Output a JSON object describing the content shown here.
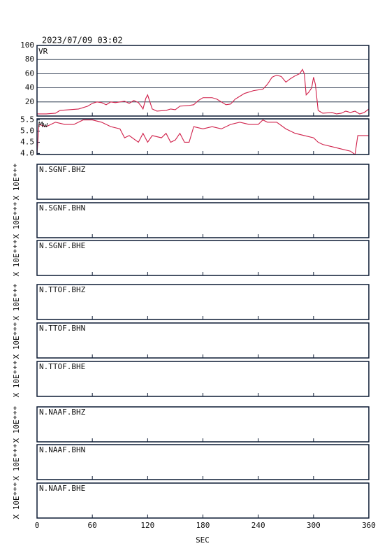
{
  "title": "2023/07/09 03:02",
  "x_axis": {
    "label": "SEC",
    "xlim": [
      0,
      360
    ],
    "xticks": [
      0,
      60,
      120,
      180,
      240,
      300,
      360
    ]
  },
  "chart_data": [
    {
      "type": "line",
      "y_label": "VR",
      "color": "#d0204a",
      "grid": true,
      "ylim": [
        0,
        100
      ],
      "yticks": [
        20,
        40,
        60,
        80,
        100
      ],
      "x": [
        0,
        10,
        20,
        25,
        35,
        45,
        55,
        60,
        65,
        70,
        75,
        80,
        85,
        95,
        100,
        105,
        110,
        113,
        115,
        118,
        120,
        122,
        125,
        130,
        140,
        145,
        150,
        155,
        165,
        170,
        175,
        180,
        190,
        195,
        200,
        205,
        210,
        215,
        220,
        225,
        235,
        240,
        245,
        250,
        255,
        260,
        265,
        270,
        275,
        280,
        285,
        288,
        290,
        292,
        295,
        298,
        300,
        302,
        305,
        310,
        320,
        325,
        330,
        335,
        340,
        345,
        350,
        355,
        360
      ],
      "values": [
        3,
        3,
        4,
        8,
        9,
        10,
        14,
        18,
        20,
        19,
        16,
        20,
        19,
        21,
        18,
        22,
        19,
        14,
        10,
        25,
        30,
        22,
        10,
        7,
        8,
        10,
        9,
        14,
        15,
        16,
        22,
        26,
        26,
        24,
        20,
        16,
        17,
        24,
        28,
        32,
        36,
        37,
        38,
        45,
        55,
        58,
        56,
        48,
        53,
        57,
        60,
        66,
        60,
        30,
        34,
        40,
        55,
        45,
        8,
        4,
        5,
        3,
        4,
        7,
        5,
        7,
        3,
        5,
        10
      ]
    },
    {
      "type": "line",
      "y_label": "Mw",
      "color": "#d0204a",
      "grid": false,
      "ylim": [
        3.95,
        5.55
      ],
      "yticks": [
        {
          "value": 4,
          "label": "4.0"
        },
        4.5,
        {
          "value": 5,
          "label": "5.0"
        },
        5.5
      ],
      "x": [
        0,
        2,
        10,
        20,
        30,
        40,
        50,
        60,
        70,
        80,
        90,
        95,
        100,
        110,
        115,
        120,
        125,
        135,
        140,
        145,
        150,
        155,
        160,
        165,
        170,
        180,
        190,
        200,
        210,
        220,
        230,
        240,
        245,
        250,
        260,
        270,
        280,
        290,
        300,
        305,
        310,
        320,
        330,
        340,
        345,
        348,
        355,
        360
      ],
      "values": [
        3.95,
        5.3,
        5.2,
        5.4,
        5.3,
        5.3,
        5.5,
        5.5,
        5.4,
        5.2,
        5.1,
        4.7,
        4.8,
        4.5,
        4.9,
        4.5,
        4.8,
        4.7,
        4.9,
        4.5,
        4.6,
        4.9,
        4.5,
        4.5,
        5.2,
        5.1,
        5.2,
        5.1,
        5.3,
        5.4,
        5.3,
        5.3,
        5.5,
        5.4,
        5.4,
        5.1,
        4.9,
        4.8,
        4.7,
        4.5,
        4.4,
        4.3,
        4.2,
        4.1,
        3.95,
        4.8,
        4.8,
        4.8
      ]
    }
  ],
  "waveform_panels": {
    "scale_label": "X 10E***",
    "channels": [
      "N.SGNF.BHZ",
      "N.SGNF.BHN",
      "N.SGNF.BHE",
      "N.TTOF.BHZ",
      "N.TTOF.BHN",
      "N.TTOF.BHE",
      "N.NAAF.BHZ",
      "N.NAAF.BHN",
      "N.NAAF.BHE"
    ]
  }
}
